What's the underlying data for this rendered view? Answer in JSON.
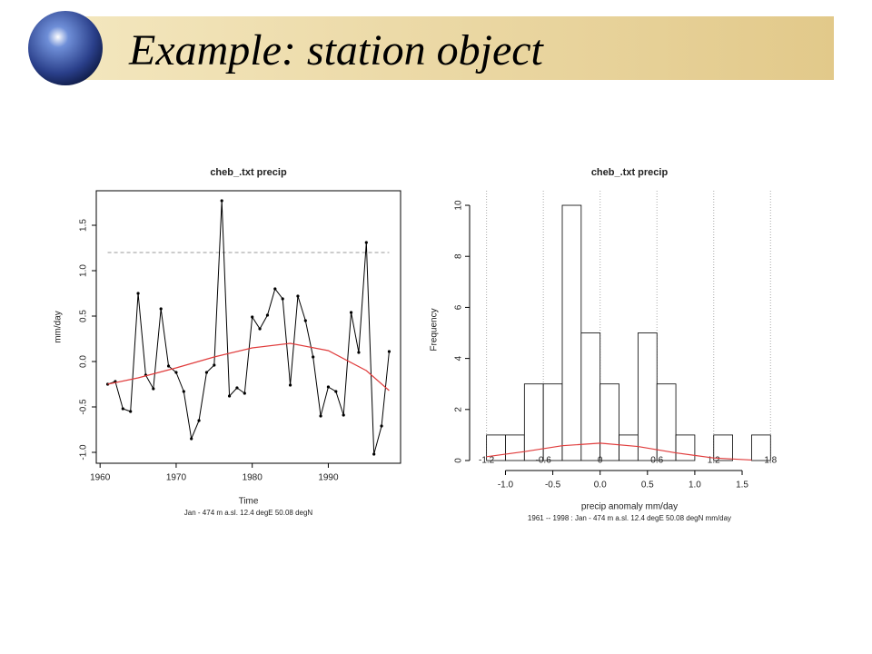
{
  "title": "Example: station object",
  "chart_data": [
    {
      "type": "line",
      "title": "cheb_.txt precip",
      "xlabel": "Time",
      "ylabel": "mm/day",
      "subtitle": "Jan  -  474 m a.sl. 12.4 degE 50.08 degN",
      "x": [
        1961,
        1962,
        1963,
        1964,
        1965,
        1966,
        1967,
        1968,
        1969,
        1970,
        1971,
        1972,
        1973,
        1974,
        1975,
        1976,
        1977,
        1978,
        1979,
        1980,
        1981,
        1982,
        1983,
        1984,
        1985,
        1986,
        1987,
        1988,
        1989,
        1990,
        1991,
        1992,
        1993,
        1994,
        1995,
        1996,
        1997,
        1998
      ],
      "series": [
        {
          "color": "#000000",
          "values": [
            -0.25,
            -0.22,
            -0.52,
            -0.55,
            0.75,
            -0.15,
            -0.3,
            0.58,
            -0.05,
            -0.12,
            -0.33,
            -0.85,
            -0.65,
            -0.12,
            -0.04,
            1.77,
            -0.38,
            -0.29,
            -0.35,
            0.49,
            0.36,
            0.51,
            0.8,
            0.69,
            -0.26,
            0.72,
            0.45,
            0.05,
            -0.6,
            -0.28,
            -0.33,
            -0.59,
            0.54,
            0.1,
            1.31,
            -1.02,
            -0.71,
            0.11
          ]
        }
      ],
      "trend": {
        "color": "#e03c3c",
        "x": [
          1961,
          1965,
          1970,
          1975,
          1980,
          1985,
          1990,
          1995,
          1998
        ],
        "values": [
          -0.25,
          -0.18,
          -0.07,
          0.05,
          0.15,
          0.2,
          0.12,
          -0.1,
          -0.32
        ]
      },
      "hline": {
        "value": 1.2,
        "color": "#999999"
      },
      "xlim": [
        1959.5,
        1999.5
      ],
      "xticks": [
        1960,
        1970,
        1980,
        1990
      ],
      "ylim": [
        -1.12,
        1.88
      ],
      "yticks": [
        {
          "value": -1,
          "label": "-1.0"
        },
        -0.5,
        {
          "value": 0,
          "label": "0.0"
        },
        0.5,
        {
          "value": 1,
          "label": "1.0"
        },
        1.5
      ]
    },
    {
      "type": "histogram",
      "title": "cheb_.txt precip",
      "xlabel": "precip anomaly mm/day",
      "ylabel": "Frequency",
      "subtitle": "1961 -- 1998 : Jan  -  474 m a.sl. 12.4 degE 50.08 degN mm/day",
      "bins": [
        -1.2,
        -1.0,
        -0.8,
        -0.6,
        -0.4,
        -0.2,
        0.0,
        0.2,
        0.4,
        0.6,
        0.8,
        1.0,
        1.2,
        1.4,
        1.6,
        1.8
      ],
      "values": [
        1,
        1,
        3,
        3,
        10,
        5,
        3,
        1,
        5,
        3,
        1,
        0,
        1,
        0,
        1
      ],
      "color": "#ffffff",
      "density": {
        "color": "#e03c3c",
        "x": [
          -1.2,
          -0.8,
          -0.4,
          0.0,
          0.4,
          0.8,
          1.2,
          1.6
        ],
        "values": [
          0.15,
          0.35,
          0.58,
          0.68,
          0.55,
          0.3,
          0.1,
          0.02
        ]
      },
      "xlim": [
        -1.35,
        1.97
      ],
      "ylim": [
        -0.32,
        10.57
      ],
      "xticks": [
        {
          "value": -1,
          "label": "-1.0"
        },
        -0.5,
        {
          "value": 0,
          "label": "0.0"
        },
        0.5,
        {
          "value": 1,
          "label": "1.0"
        },
        1.5
      ],
      "yticks": [
        0,
        2,
        4,
        6,
        8,
        10
      ],
      "x2ticks": [
        -1.2,
        -0.6,
        0,
        0.6,
        1.2,
        1.8
      ],
      "grid": true
    }
  ]
}
